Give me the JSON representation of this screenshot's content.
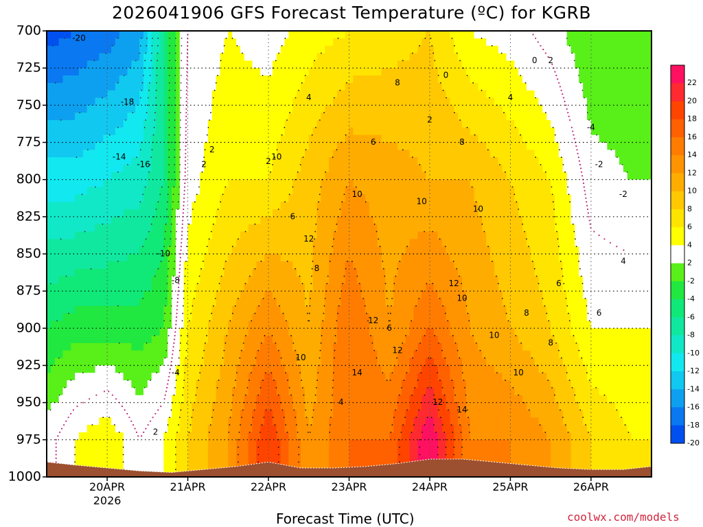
{
  "title": "2026041906 GFS Forecast Temperature (ºC) for KGRB",
  "footer": {
    "xlabel": "Forecast Time (UTC)",
    "credit": "coolwx.com/models"
  },
  "chart_data": {
    "type": "heatmap",
    "title": "2026041906 GFS Forecast Temperature (ºC) for KGRB",
    "xlabel": "Forecast Time (UTC)",
    "ylabel": "",
    "y_ticks": [
      "700",
      "725",
      "750",
      "775",
      "800",
      "825",
      "850",
      "875",
      "900",
      "925",
      "950",
      "975",
      "1000"
    ],
    "x_ticks": [
      {
        "label": "20APR",
        "sublabel": "2026",
        "day": 1.0
      },
      {
        "label": "21APR",
        "sublabel": "",
        "day": 2.0
      },
      {
        "label": "22APR",
        "sublabel": "",
        "day": 3.0
      },
      {
        "label": "23APR",
        "sublabel": "",
        "day": 4.0
      },
      {
        "label": "24APR",
        "sublabel": "",
        "day": 5.0
      },
      {
        "label": "25APR",
        "sublabel": "",
        "day": 6.0
      },
      {
        "label": "26APR",
        "sublabel": "",
        "day": 7.0
      }
    ],
    "x_range_days": [
      0.25,
      7.75
    ],
    "y_range_hpa": [
      700,
      1000
    ],
    "grid": true,
    "colorbar": {
      "levels": [
        -22,
        -20,
        -18,
        -16,
        -14,
        -12,
        -10,
        -8,
        -6,
        -4,
        -2,
        2,
        4,
        6,
        8,
        10,
        12,
        14,
        16,
        18,
        20,
        22
      ],
      "labels": [
        "22",
        "20",
        "18",
        "16",
        "14",
        "12",
        "10",
        "8",
        "6",
        "4",
        "2",
        "-2",
        "-4",
        "-6",
        "-8",
        "-10",
        "-12",
        "-14",
        "-16",
        "-18",
        "-20"
      ],
      "colors": [
        "#0050f0",
        "#0a78f0",
        "#0ea0f0",
        "#10c8f0",
        "#12e8f0",
        "#10e8c8",
        "#10e8a0",
        "#10e878",
        "#20e840",
        "#58f018",
        "#ffffff",
        "#ffff00",
        "#ffe400",
        "#ffc800",
        "#ffac00",
        "#ff9400",
        "#ff7c00",
        "#ff6000",
        "#ff4400",
        "#ff2a30",
        "#ff1060"
      ]
    },
    "temperature_profile": [
      {
        "day": 0.25,
        "p700": -21,
        "p800": -13,
        "p900": -6,
        "p975": -1
      },
      {
        "day": 0.6,
        "p700": -20,
        "p800": -13,
        "p900": -5,
        "p975": 2
      },
      {
        "day": 1.0,
        "p700": -19,
        "p800": -12,
        "p900": -5,
        "p975": 4
      },
      {
        "day": 1.4,
        "p700": -17,
        "p800": -11,
        "p900": -5,
        "p975": 0
      },
      {
        "day": 1.7,
        "p700": -8,
        "p800": -8,
        "p900": -4,
        "p975": 2
      },
      {
        "day": 2.0,
        "p700": 0,
        "p800": 1,
        "p900": 4,
        "p975": 6
      },
      {
        "day": 2.5,
        "p700": 2,
        "p800": 4,
        "p900": 8,
        "p975": 10
      },
      {
        "day": 3.0,
        "p700": 1,
        "p800": 4,
        "p900": 12,
        "p975": 18
      },
      {
        "day": 3.5,
        "p700": 3,
        "p800": 7,
        "p900": 8,
        "p975": 10
      },
      {
        "day": 4.0,
        "p700": 4,
        "p800": 10,
        "p900": 14,
        "p975": 14
      },
      {
        "day": 4.5,
        "p700": 5,
        "p800": 9,
        "p900": 10,
        "p975": 14
      },
      {
        "day": 5.0,
        "p700": 6,
        "p800": 8,
        "p900": 14,
        "p975": 22
      },
      {
        "day": 5.5,
        "p700": 2,
        "p800": 8,
        "p900": 10,
        "p975": 12
      },
      {
        "day": 6.0,
        "p700": 1,
        "p800": 6,
        "p900": 8,
        "p975": 12
      },
      {
        "day": 6.5,
        "p700": -1,
        "p800": 4,
        "p900": 6,
        "p975": 10
      },
      {
        "day": 7.0,
        "p700": -4,
        "p800": -1,
        "p900": 2,
        "p975": 6
      },
      {
        "day": 7.5,
        "p700": -4,
        "p800": -2,
        "p900": 2,
        "p975": 4
      }
    ],
    "contour_labels": [
      "-20",
      "-18",
      "-16",
      "-14",
      "-10",
      "-8",
      "-4",
      "2",
      "2",
      "2",
      "4",
      "6",
      "6",
      "8",
      "8",
      "8",
      "10",
      "10",
      "10",
      "10",
      "12",
      "12",
      "12",
      "12",
      "14",
      "14",
      "10",
      "10",
      "12",
      "10",
      "8",
      "6",
      "4",
      "2",
      "0",
      "0",
      "2",
      "-4",
      "-2",
      "4",
      "6",
      "8",
      "10",
      "6",
      "4",
      "2",
      "-2"
    ],
    "surface": {
      "color": "#9c5030"
    }
  }
}
